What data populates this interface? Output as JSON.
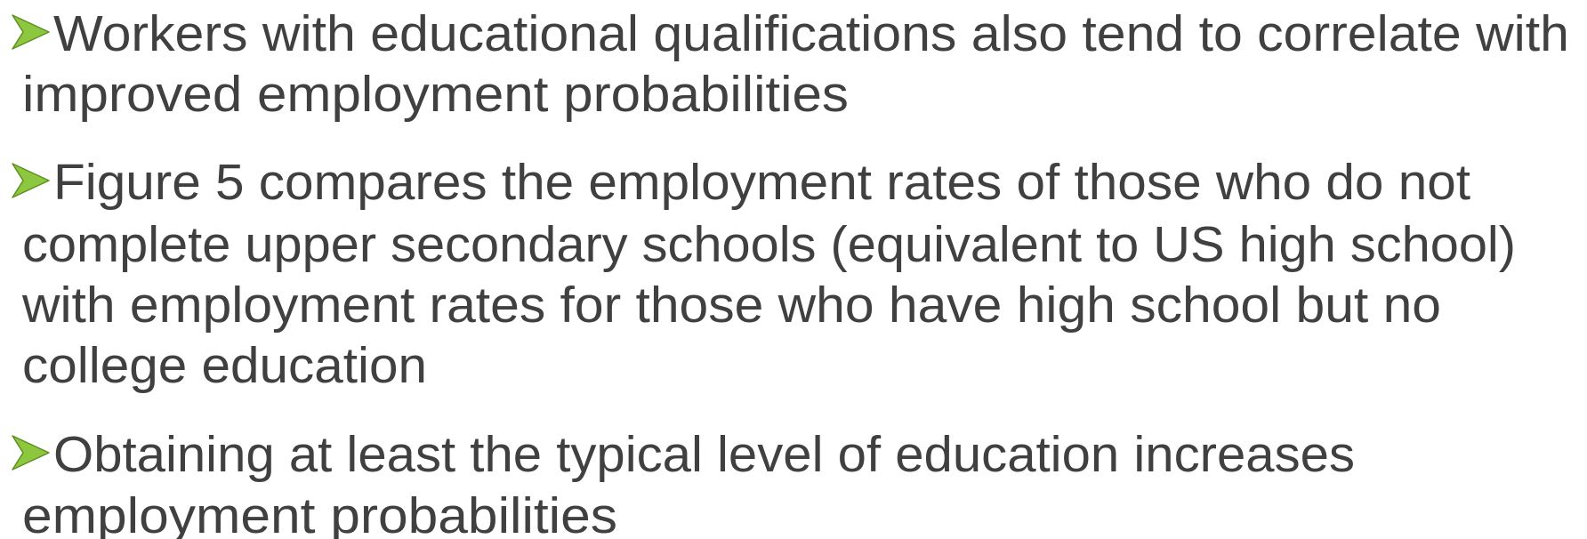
{
  "bullets": [
    {
      "lines": [
        "Workers with educational qualifications also tend to correlate with",
        "improved employment probabilities"
      ]
    },
    {
      "lines": [
        "Figure 5 compares the employment rates of those who do not",
        "complete upper secondary schools (equivalent to US high school)",
        "with employment rates for those who have high school but no",
        "college education"
      ]
    },
    {
      "lines": [
        "Obtaining at least the typical level of education increases",
        "employment probabilities"
      ]
    }
  ]
}
